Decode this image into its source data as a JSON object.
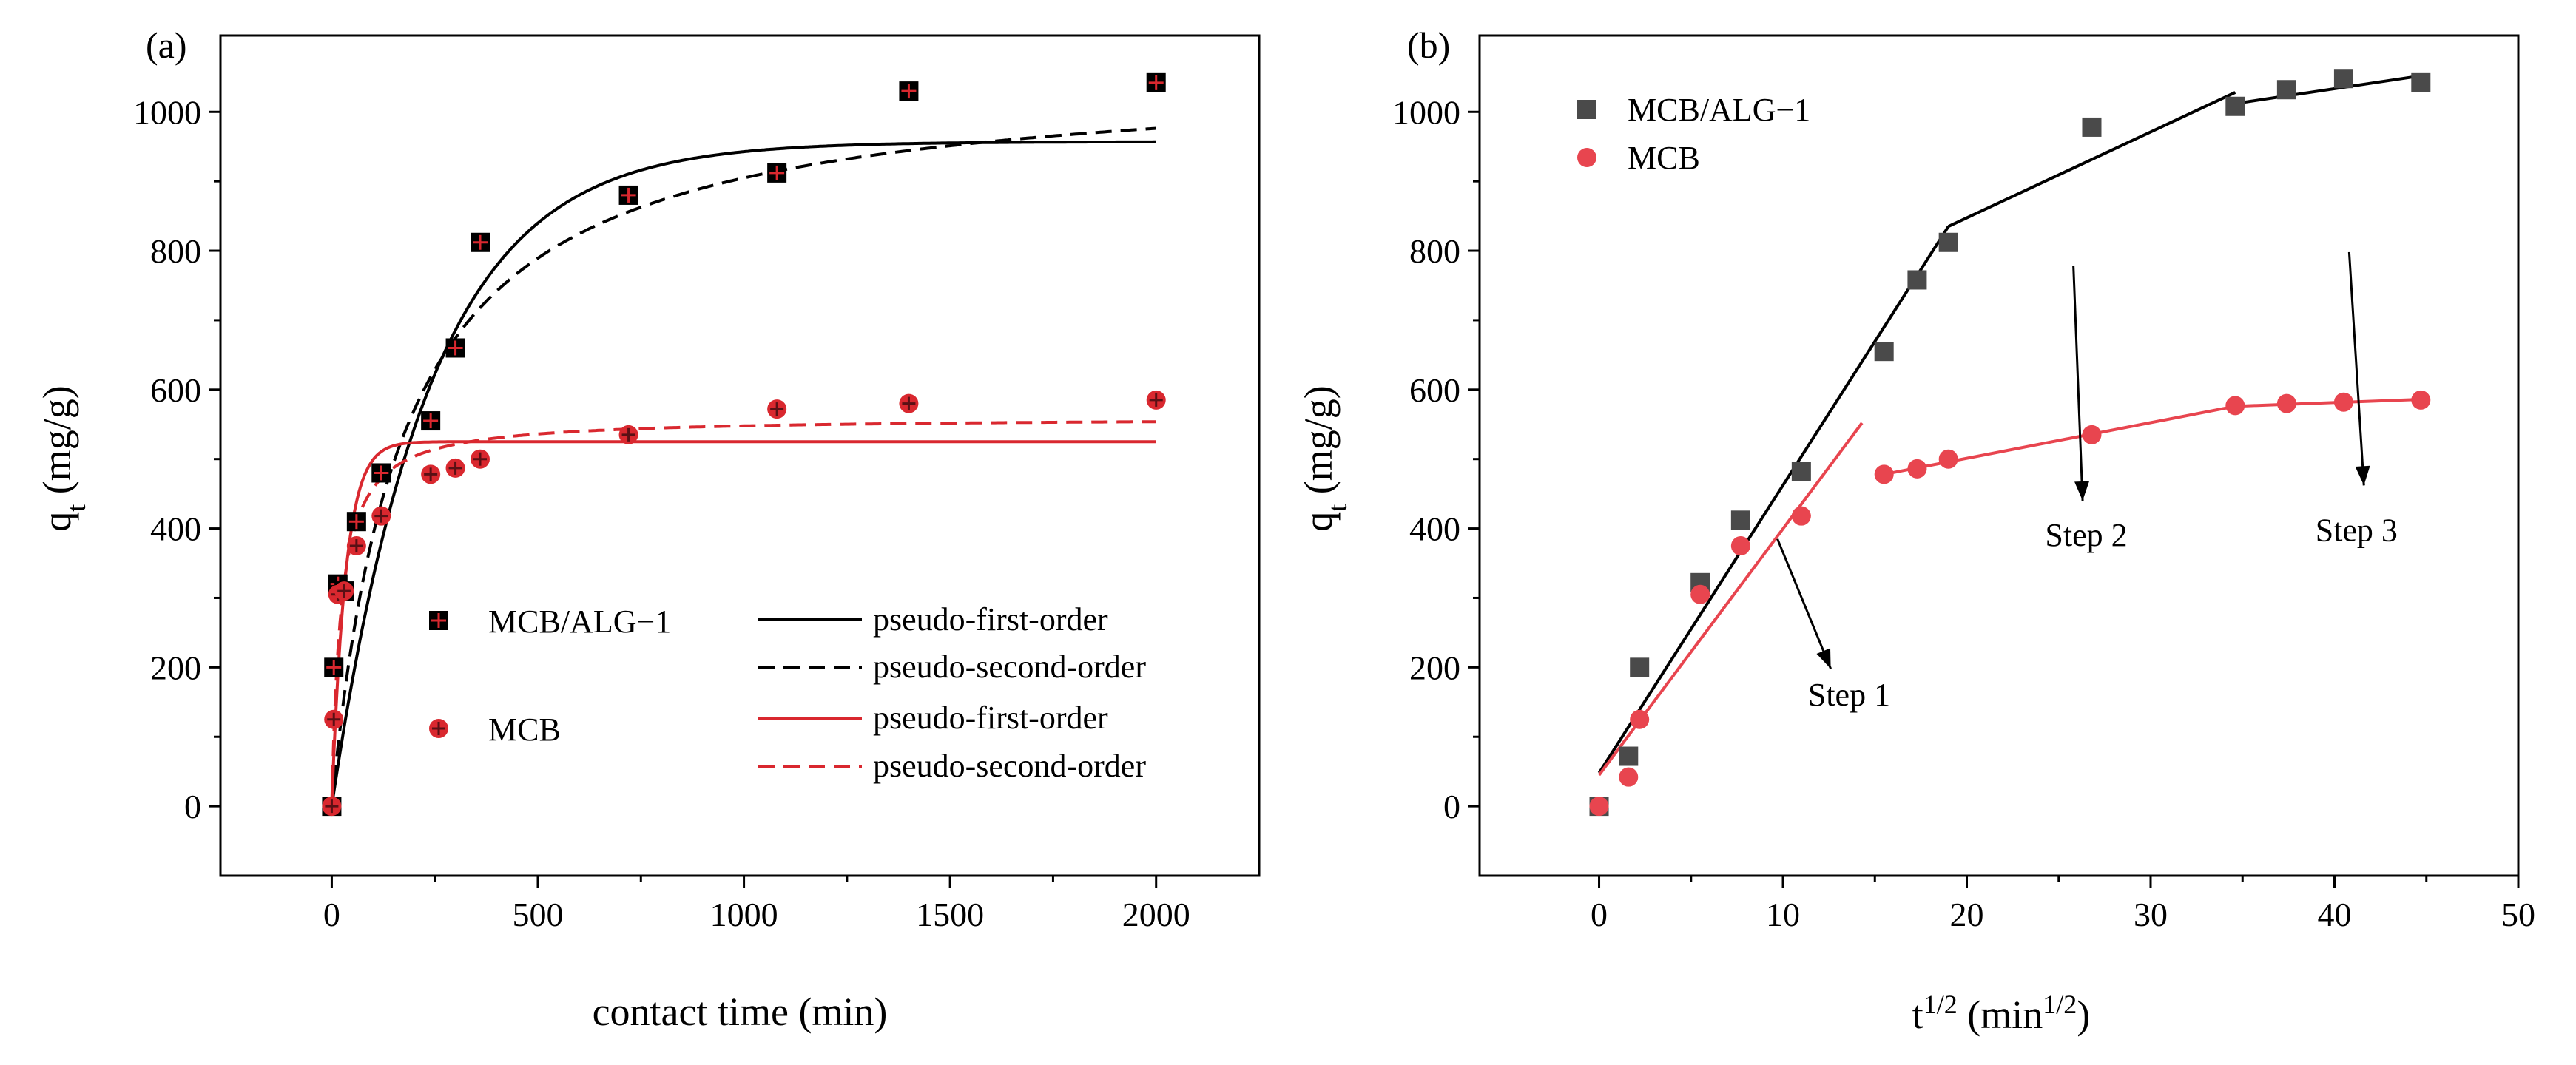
{
  "chart_data": [
    {
      "type": "scatter",
      "panel_label": "(a)",
      "xlabel": "contact time (min)",
      "ylabel": "q",
      "ylabel_sub": "t",
      "ylabel_unit": " (mg/g)",
      "xlim": [
        -270,
        2250
      ],
      "ylim": [
        -100,
        1110
      ],
      "xticks": [
        0,
        500,
        1000,
        1500,
        2000
      ],
      "yticks": [
        0,
        200,
        400,
        600,
        800,
        1000
      ],
      "series": [
        {
          "name": "MCB/ALG−1",
          "marker": "square",
          "color": "#000000",
          "x": [
            0,
            5,
            15,
            30,
            60,
            120,
            240,
            300,
            360,
            720,
            1080,
            1400,
            2000
          ],
          "y": [
            0,
            200,
            320,
            310,
            410,
            480,
            555,
            660,
            812,
            880,
            912,
            1030,
            1042
          ]
        },
        {
          "name": "MCB",
          "marker": "circle",
          "color": "#d9282f",
          "x": [
            0,
            5,
            15,
            30,
            60,
            120,
            240,
            300,
            360,
            720,
            1080,
            1400,
            2000
          ],
          "y": [
            0,
            125,
            305,
            310,
            375,
            418,
            478,
            487,
            500,
            535,
            572,
            580,
            585
          ]
        }
      ],
      "fits": [
        {
          "name": "pseudo-first-order",
          "of": "MCB/ALG−1",
          "model": "pfo",
          "qe": 957,
          "k": 0.0042,
          "color": "#000000",
          "dash": false
        },
        {
          "name": "pseudo-second-order",
          "of": "MCB/ALG−1",
          "model": "pso",
          "qe": 1060,
          "k": 5.5e-06,
          "color": "#000000",
          "dash": true
        },
        {
          "name": "pseudo-first-order",
          "of": "MCB",
          "model": "pfo",
          "qe": 525,
          "k": 0.03,
          "color": "#d9282f",
          "dash": false
        },
        {
          "name": "pseudo-second-order",
          "of": "MCB",
          "model": "pso",
          "qe": 560,
          "k": 8e-05,
          "color": "#d9282f",
          "dash": true
        }
      ]
    },
    {
      "type": "scatter",
      "panel_label": "(b)",
      "xlabel": "t",
      "xlabel_sup": "1/2",
      "xlabel_unit": " (min",
      "xlabel_unit_sup": "1/2",
      "xlabel_close": ")",
      "ylabel": "q",
      "ylabel_sub": "t",
      "ylabel_unit": " (mg/g)",
      "xlim": [
        -6.5,
        50
      ],
      "ylim": [
        -100,
        1110
      ],
      "xticks": [
        0,
        10,
        20,
        30,
        40,
        50
      ],
      "yticks": [
        0,
        200,
        400,
        600,
        800,
        1000
      ],
      "series": [
        {
          "name": "MCB/ALG−1",
          "marker": "square",
          "color": "#4a4a4a",
          "x": [
            0,
            1.6,
            2.2,
            5.5,
            7.7,
            11.0,
            15.5,
            17.3,
            19.0,
            26.8,
            34.6,
            37.4,
            40.5,
            44.7
          ],
          "y": [
            0,
            72,
            200,
            322,
            412,
            482,
            655,
            758,
            812,
            978,
            1008,
            1032,
            1048,
            1042
          ]
        },
        {
          "name": "MCB",
          "marker": "circle",
          "color": "#e8454f",
          "x": [
            0,
            1.6,
            2.2,
            5.5,
            7.7,
            11.0,
            15.5,
            17.3,
            19.0,
            26.8,
            34.6,
            37.4,
            40.5,
            44.7
          ],
          "y": [
            0,
            42,
            125,
            305,
            375,
            418,
            478,
            486,
            500,
            535,
            577,
            580,
            582,
            585
          ]
        }
      ],
      "fit_lines": [
        {
          "of": "MCB/ALG−1",
          "color": "#000000",
          "x": [
            0,
            19.0
          ],
          "y": [
            48,
            835
          ]
        },
        {
          "of": "MCB/ALG−1",
          "color": "#000000",
          "x": [
            19.0,
            34.6
          ],
          "y": [
            835,
            1028
          ]
        },
        {
          "of": "MCB/ALG−1",
          "color": "#000000",
          "x": [
            34.6,
            44.7
          ],
          "y": [
            1012,
            1052
          ]
        },
        {
          "of": "MCB",
          "color": "#e8454f",
          "x": [
            0,
            14.3
          ],
          "y": [
            45,
            552
          ]
        },
        {
          "of": "MCB",
          "color": "#e8454f",
          "x": [
            15.5,
            34.6
          ],
          "y": [
            478,
            576
          ]
        },
        {
          "of": "MCB",
          "color": "#e8454f",
          "x": [
            34.6,
            44.7
          ],
          "y": [
            576,
            586
          ]
        }
      ],
      "annotations": [
        {
          "text": "Step 1",
          "text_x": 13.6,
          "text_y": 145,
          "arrow_from": [
            9.7,
            385
          ],
          "arrow_to": [
            12.6,
            198
          ]
        },
        {
          "text": "Step 2",
          "text_x": 26.5,
          "text_y": 375,
          "arrow_from": [
            25.8,
            778
          ],
          "arrow_to": [
            26.3,
            440
          ]
        },
        {
          "text": "Step 3",
          "text_x": 41.2,
          "text_y": 382,
          "arrow_from": [
            40.8,
            798
          ],
          "arrow_to": [
            41.6,
            462
          ]
        }
      ]
    }
  ]
}
